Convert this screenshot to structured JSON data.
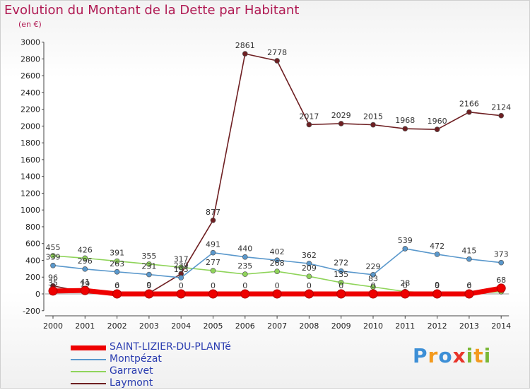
{
  "title": "Evolution du Montant de la Dette par Habitant",
  "unit": "(en €)",
  "brand": {
    "letters": [
      "P",
      "r",
      "o",
      "x",
      "i",
      "t",
      "i"
    ],
    "colors": [
      "#3d8fd6",
      "#f39a1e",
      "#3d8fd6",
      "#e8352b",
      "#7ab735",
      "#f39a1e",
      "#7ab735"
    ]
  },
  "chart_data": {
    "type": "line",
    "categories": [
      "2000",
      "2001",
      "2002",
      "2003",
      "2004",
      "2005",
      "2006",
      "2007",
      "2008",
      "2009",
      "2010",
      "2011",
      "2012",
      "2013",
      "2014"
    ],
    "ylim": [
      -200,
      3000
    ],
    "yticks": [
      "-200",
      "0",
      "200",
      "400",
      "600",
      "800",
      "1000",
      "1200",
      "1400",
      "1600",
      "1800",
      "2000",
      "2200",
      "2400",
      "2600",
      "2800",
      "3000"
    ],
    "grid": false,
    "legend_position": "bottom-left",
    "series": [
      {
        "name": "SAINT-LIZIER-DU-PLANTé",
        "color": "#ee0000",
        "values": [
          35,
          41,
          0,
          0,
          0,
          0,
          0,
          0,
          0,
          0,
          0,
          0,
          0,
          0,
          68
        ],
        "labels": [
          "35",
          "41",
          "0",
          "0",
          "0",
          "0",
          "0",
          "0",
          "0",
          "0",
          "0",
          "0",
          "0",
          "0",
          "68"
        ]
      },
      {
        "name": "Montpézat",
        "color": "#5a98cc",
        "values": [
          339,
          296,
          263,
          231,
          193,
          491,
          440,
          402,
          362,
          272,
          229,
          539,
          472,
          415,
          373
        ],
        "labels": [
          "339",
          "296",
          "263",
          "231",
          "193",
          "491",
          "440",
          "402",
          "362",
          "272",
          "229",
          "539",
          "472",
          "415",
          "373"
        ]
      },
      {
        "name": "Garravet",
        "color": "#8fd45a",
        "values": [
          455,
          426,
          391,
          355,
          317,
          277,
          235,
          268,
          209,
          135,
          83,
          28,
          9,
          6,
          26
        ],
        "labels": [
          "455",
          "426",
          "391",
          "355",
          "317",
          "277",
          "235",
          "268",
          "209",
          "135",
          "83",
          "28",
          "9",
          "6",
          ""
        ]
      },
      {
        "name": "Laymont",
        "color": "#6e1f22",
        "values": [
          96,
          19,
          6,
          9,
          239,
          877,
          2861,
          2778,
          2017,
          2029,
          2015,
          1968,
          1960,
          2166,
          2124
        ],
        "labels": [
          "96",
          "19",
          "6",
          "9",
          "239",
          "877",
          "2861",
          "2778",
          "2017",
          "2029",
          "2015",
          "1968",
          "1960",
          "2166",
          "2124"
        ]
      }
    ]
  }
}
